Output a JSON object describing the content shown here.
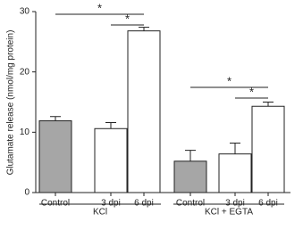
{
  "chart_data": {
    "type": "bar",
    "y_label": "Glutamate release (nmol/mg protein)",
    "categories": [
      "Control",
      "3 dpi",
      "6 dpi",
      "Control",
      "3 dpi",
      "6 dpi"
    ],
    "values": [
      11.9,
      10.6,
      26.8,
      5.2,
      6.4,
      14.3
    ],
    "errors": [
      0.7,
      1.0,
      0.6,
      1.8,
      1.8,
      0.7
    ],
    "colors": [
      "#a6a6a6",
      "#ffffff",
      "#ffffff",
      "#a6a6a6",
      "#ffffff",
      "#ffffff"
    ],
    "groups": [
      "KCl",
      "KCl + EGTA"
    ],
    "significance": [
      "*",
      "*",
      "*",
      "*"
    ],
    "ylim": [
      0,
      30
    ],
    "yticks": [
      0,
      10,
      20,
      30
    ]
  }
}
